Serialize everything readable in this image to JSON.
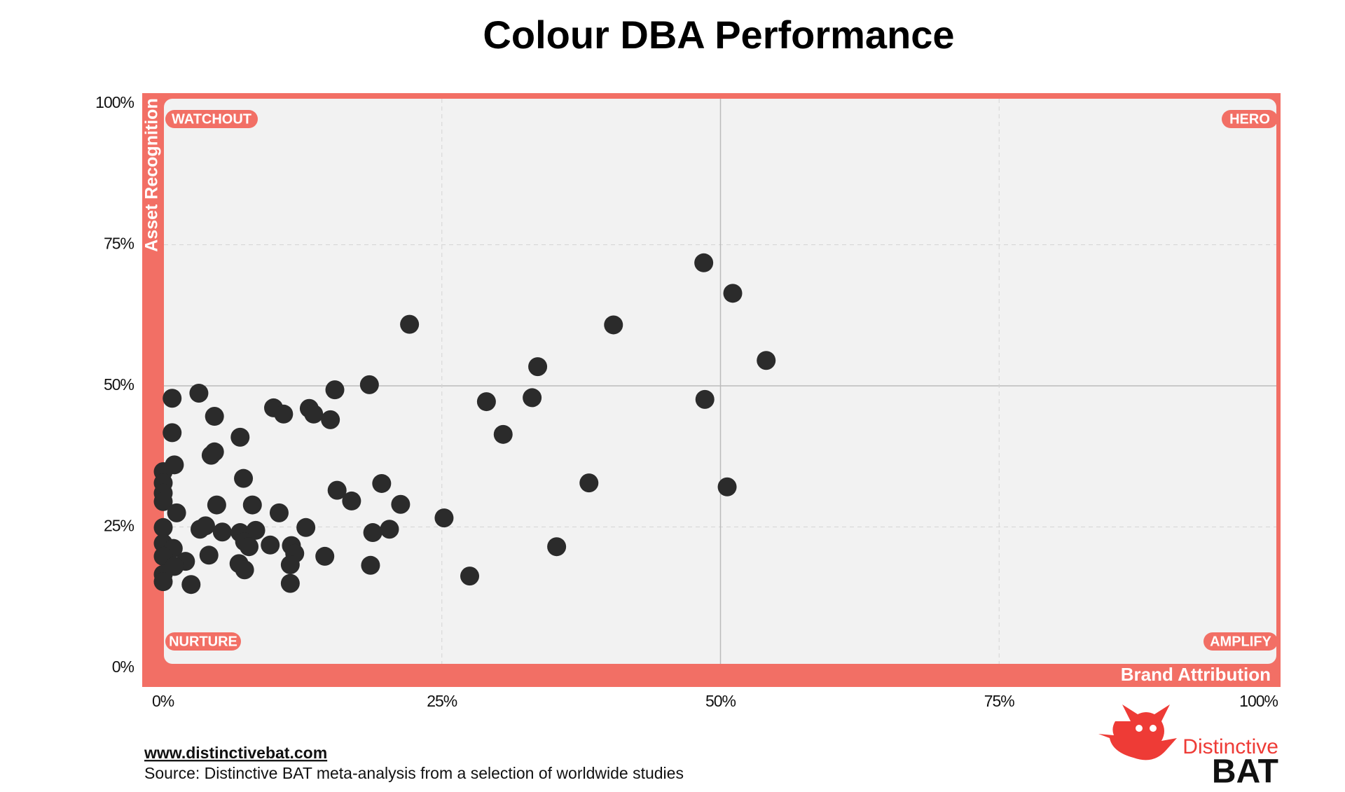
{
  "chart_data": {
    "type": "scatter",
    "title": "Colour DBA Performance",
    "x_label": "Brand Attribution",
    "y_label": "Asset Recognition",
    "quadrants": {
      "top_left": "WATCHOUT",
      "top_right": "HERO",
      "bottom_left": "NURTURE",
      "bottom_right": "AMPLIFY"
    },
    "color": "#2b2b2b",
    "frame_color": "#f26f65",
    "grid": true,
    "xlim": [
      0,
      100
    ],
    "ylim": [
      0,
      100
    ],
    "xticks": [
      {
        "value": 0,
        "label": "0%"
      },
      {
        "value": 25,
        "label": "25%"
      },
      {
        "value": 50,
        "label": "50%"
      },
      {
        "value": 75,
        "label": "75%"
      },
      {
        "value": 100,
        "label": "100%"
      }
    ],
    "yticks": [
      {
        "value": 0,
        "label": "0%"
      },
      {
        "value": 25,
        "label": "25%"
      },
      {
        "value": 50,
        "label": "50%"
      },
      {
        "value": 75,
        "label": "75%"
      },
      {
        "value": 100,
        "label": "100%"
      }
    ],
    "x": [
      48.5,
      51.1,
      22.1,
      40.4,
      54.1,
      33.6,
      18.5,
      3.2,
      0.8,
      15.4,
      29.0,
      33.1,
      48.6,
      9.9,
      10.8,
      13.1,
      13.5,
      15.0,
      4.6,
      0.8,
      6.9,
      30.5,
      4.6,
      4.3,
      1.0,
      0,
      0,
      0,
      0,
      7.2,
      19.6,
      38.2,
      50.6,
      15.6,
      16.9,
      21.3,
      4.8,
      8.0,
      1.2,
      10.4,
      25.2,
      0,
      3.8,
      3.3,
      5.3,
      6.9,
      8.3,
      12.8,
      18.8,
      20.3,
      0,
      7.3,
      7.7,
      9.6,
      11.5,
      0.9,
      35.3,
      0,
      11.8,
      4.1,
      14.5,
      2.0,
      1.0,
      6.8,
      7.3,
      11.4,
      18.6,
      0,
      27.5,
      0,
      11.4,
      2.5
    ],
    "values": [
      71.8,
      66.4,
      60.9,
      60.8,
      54.5,
      53.4,
      50.2,
      48.7,
      47.8,
      49.3,
      47.2,
      47.9,
      47.6,
      46.1,
      45.0,
      46.0,
      45.0,
      44.0,
      44.6,
      41.7,
      40.9,
      41.4,
      38.3,
      37.7,
      36.0,
      34.8,
      32.8,
      31.0,
      29.5,
      33.6,
      32.7,
      32.8,
      32.1,
      31.5,
      29.6,
      29.0,
      28.9,
      28.9,
      27.5,
      27.5,
      26.6,
      24.9,
      25.2,
      24.6,
      24.1,
      24.0,
      24.4,
      24.9,
      24.0,
      24.6,
      22.1,
      22.4,
      21.5,
      21.8,
      21.7,
      21.2,
      21.5,
      19.8,
      20.3,
      20.0,
      19.8,
      18.9,
      18.0,
      18.5,
      17.4,
      18.3,
      18.2,
      16.6,
      16.3,
      15.3,
      15.0,
      14.8
    ]
  },
  "footer": {
    "url": "www.distinctivebat.com",
    "source": "Source: Distinctive BAT meta-analysis from a selection of worldwide studies"
  },
  "logo": {
    "line1": "Distinctive",
    "line2": "BAT"
  }
}
